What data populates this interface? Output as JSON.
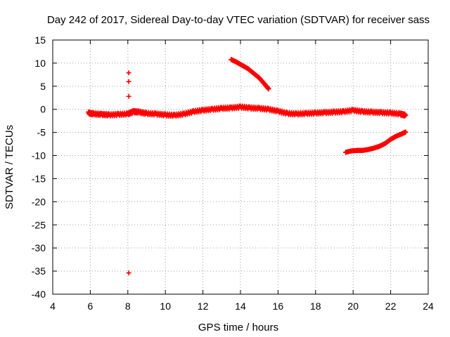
{
  "chart_data": {
    "type": "scatter",
    "title": "Day 242 of 2017, Sidereal Day-to-day VTEC variation (SDTVAR) for receiver sass",
    "xlabel": "GPS time / hours",
    "ylabel": "SDTVAR / TECUs",
    "xlim": [
      4,
      24
    ],
    "ylim": [
      -40,
      15
    ],
    "xticks": [
      4,
      6,
      8,
      10,
      12,
      14,
      16,
      18,
      20,
      22,
      24
    ],
    "yticks": [
      15,
      10,
      5,
      0,
      -5,
      -10,
      -15,
      -20,
      -25,
      -30,
      -35,
      -40
    ],
    "grid": true,
    "marker": "+",
    "color": "#ff0000",
    "series": [
      {
        "name": "main band",
        "x": [
          5.9,
          6.2,
          6.6,
          7.0,
          7.5,
          8.0,
          8.3,
          8.6,
          9.0,
          9.5,
          10.0,
          10.5,
          11.0,
          11.5,
          12.0,
          12.5,
          13.0,
          13.5,
          14.0,
          14.5,
          15.0,
          15.5,
          16.0,
          16.5,
          17.0,
          17.5,
          18.0,
          18.5,
          19.0,
          19.5,
          20.0,
          20.5,
          21.0,
          21.5,
          22.0,
          22.5,
          22.8
        ],
        "y": [
          -0.8,
          -1.0,
          -1.1,
          -1.2,
          -1.1,
          -1.0,
          -0.5,
          -0.6,
          -0.9,
          -1.0,
          -1.2,
          -1.3,
          -1.0,
          -0.5,
          -0.2,
          0.0,
          0.2,
          0.3,
          0.5,
          0.3,
          0.2,
          0.0,
          -0.4,
          -0.9,
          -1.0,
          -0.9,
          -0.8,
          -0.7,
          -0.6,
          -0.5,
          -0.2,
          -0.5,
          -0.6,
          -0.7,
          -0.8,
          -1.0,
          -1.3
        ]
      },
      {
        "name": "upper segment",
        "x": [
          13.5,
          13.8,
          14.1,
          14.4,
          14.7,
          15.0,
          15.3,
          15.5
        ],
        "y": [
          10.8,
          10.2,
          9.5,
          8.8,
          7.8,
          6.8,
          5.4,
          4.4
        ]
      },
      {
        "name": "lower segment",
        "x": [
          19.6,
          19.9,
          20.2,
          20.5,
          20.8,
          21.1,
          21.4,
          21.7,
          22.0,
          22.3,
          22.6,
          22.8
        ],
        "y": [
          -9.3,
          -9.0,
          -8.9,
          -8.9,
          -8.7,
          -8.4,
          -8.0,
          -7.4,
          -6.5,
          -5.8,
          -5.3,
          -4.9
        ]
      },
      {
        "name": "outliers near 8h",
        "x": [
          8.05,
          8.05,
          8.05,
          8.05
        ],
        "y": [
          7.9,
          6.0,
          2.8,
          -35.4
        ]
      }
    ]
  }
}
